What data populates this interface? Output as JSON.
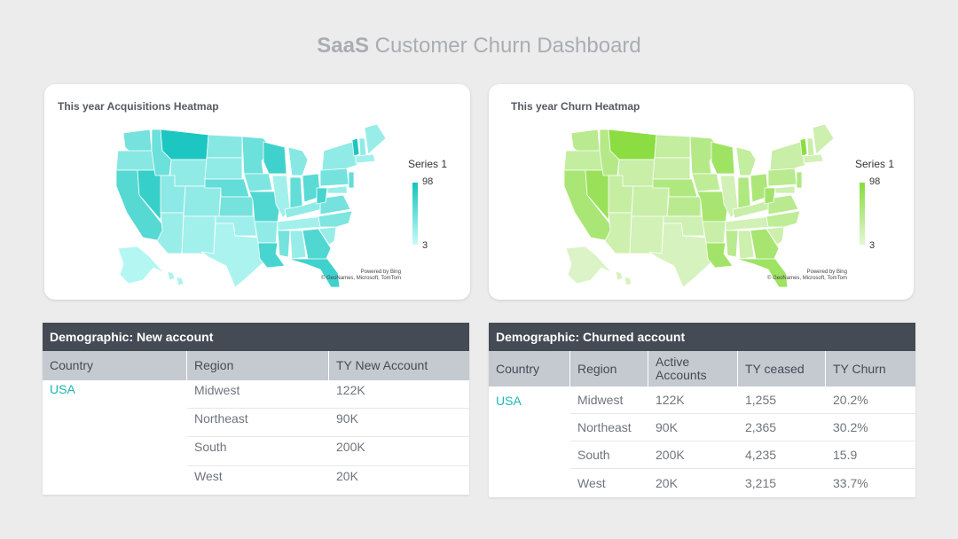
{
  "title": {
    "bold": "SaaS",
    "rest": " Customer Churn Dashboard"
  },
  "acq_map": {
    "title": "This year Acquisitions Heatmap",
    "legend_title": "Series 1",
    "legend_max": "98",
    "legend_min": "3",
    "credit_1": "Powered by Bing",
    "credit_2": "© GeoNames, Microsoft, TomTom",
    "color_max": "#12c4bd",
    "color_min": "#c6fbf8"
  },
  "churn_map": {
    "title": "This year Churn Heatmap",
    "legend_title": "Series 1",
    "legend_max": "98",
    "legend_min": "3",
    "credit_1": "Powered by Bing",
    "credit_2": "© GeoNames, Microsoft, TomTom",
    "color_max": "#86dc3a",
    "color_min": "#e4f6d5"
  },
  "new_table": {
    "heading": "Demographic: New account",
    "columns": [
      "Country",
      "Region",
      "TY New Account"
    ],
    "country": "USA",
    "rows": [
      {
        "region": "Midwest",
        "value": "122K"
      },
      {
        "region": "Northeast",
        "value": "90K"
      },
      {
        "region": "South",
        "value": "200K"
      },
      {
        "region": "West",
        "value": "20K"
      }
    ]
  },
  "churn_table": {
    "heading": "Demographic: Churned account",
    "columns": [
      "Country",
      "Region",
      "Active Accounts",
      "TY ceased",
      "TY Churn"
    ],
    "country": "USA",
    "rows": [
      {
        "region": "Midwest",
        "active": "122K",
        "ceased": "1,255",
        "churn": "20.2%"
      },
      {
        "region": "Northeast",
        "active": "90K",
        "ceased": "2,365",
        "churn": "30.2%"
      },
      {
        "region": "South",
        "active": "200K",
        "ceased": "4,235",
        "churn": "15.9"
      },
      {
        "region": "West",
        "active": "20K",
        "ceased": "3,215",
        "churn": "33.7%"
      }
    ]
  }
}
